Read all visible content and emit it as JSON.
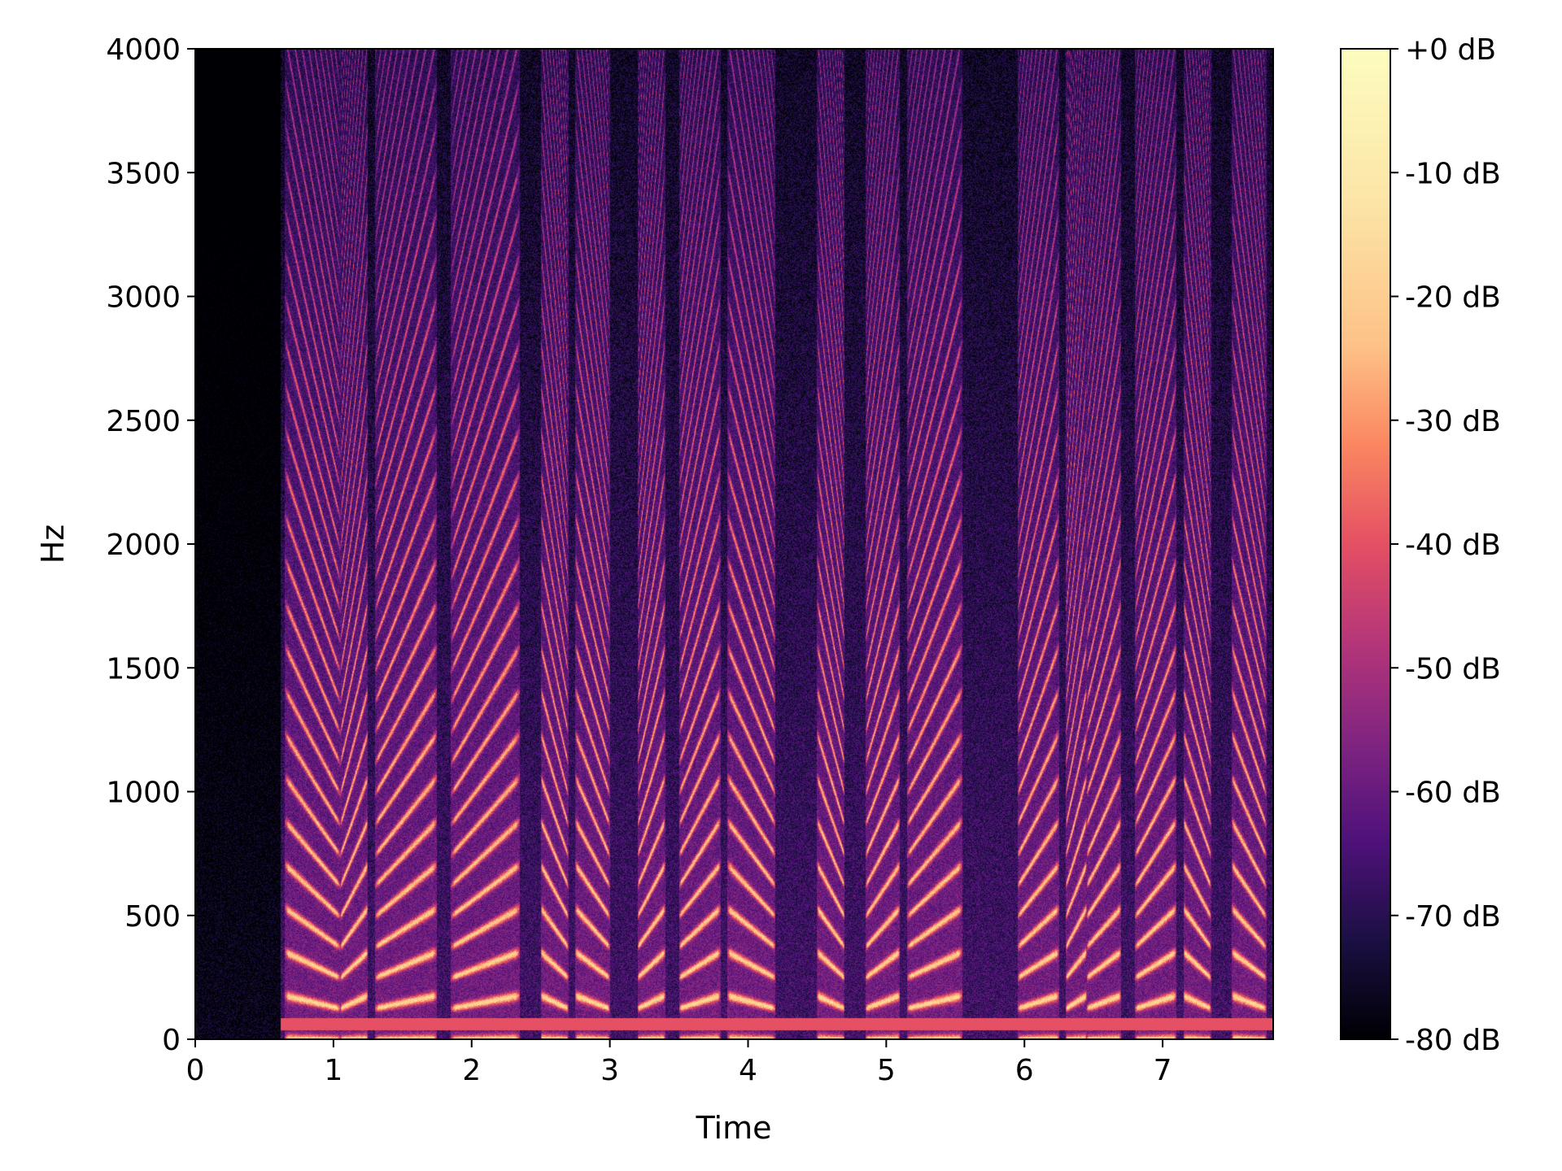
{
  "chart_data": {
    "type": "heatmap",
    "title": "",
    "xlabel": "Time",
    "ylabel": "Hz",
    "xlim": [
      0,
      7.8
    ],
    "ylim": [
      0,
      4000
    ],
    "x_ticks": [
      0,
      1,
      2,
      3,
      4,
      5,
      6,
      7
    ],
    "x_tick_labels": [
      "0",
      "1",
      "2",
      "3",
      "4",
      "5",
      "6",
      "7"
    ],
    "y_ticks": [
      0,
      500,
      1000,
      1500,
      2000,
      2500,
      3000,
      3500,
      4000
    ],
    "y_tick_labels": [
      "0",
      "500",
      "1000",
      "1500",
      "2000",
      "2500",
      "3000",
      "3500",
      "4000"
    ],
    "colorbar": {
      "range": [
        -80,
        0
      ],
      "ticks": [
        0,
        -10,
        -20,
        -30,
        -40,
        -50,
        -60,
        -70,
        -80
      ],
      "tick_labels": [
        "+0 dB",
        "-10 dB",
        "-20 dB",
        "-30 dB",
        "-40 dB",
        "-50 dB",
        "-60 dB",
        "-70 dB",
        "-80 dB"
      ],
      "colormap": "magma"
    },
    "voiced_segments_s": [
      [
        0.65,
        1.05
      ],
      [
        1.05,
        1.25
      ],
      [
        1.3,
        1.75
      ],
      [
        1.85,
        2.35
      ],
      [
        2.5,
        2.7
      ],
      [
        2.75,
        3.0
      ],
      [
        3.2,
        3.4
      ],
      [
        3.5,
        3.8
      ],
      [
        3.85,
        4.2
      ],
      [
        4.5,
        4.7
      ],
      [
        4.85,
        5.1
      ],
      [
        5.15,
        5.55
      ],
      [
        5.95,
        6.25
      ],
      [
        6.3,
        6.45
      ],
      [
        6.45,
        6.7
      ],
      [
        6.8,
        7.1
      ],
      [
        7.15,
        7.35
      ],
      [
        7.5,
        7.75
      ]
    ],
    "fundamental_hz_approx": 150,
    "grid": false
  }
}
